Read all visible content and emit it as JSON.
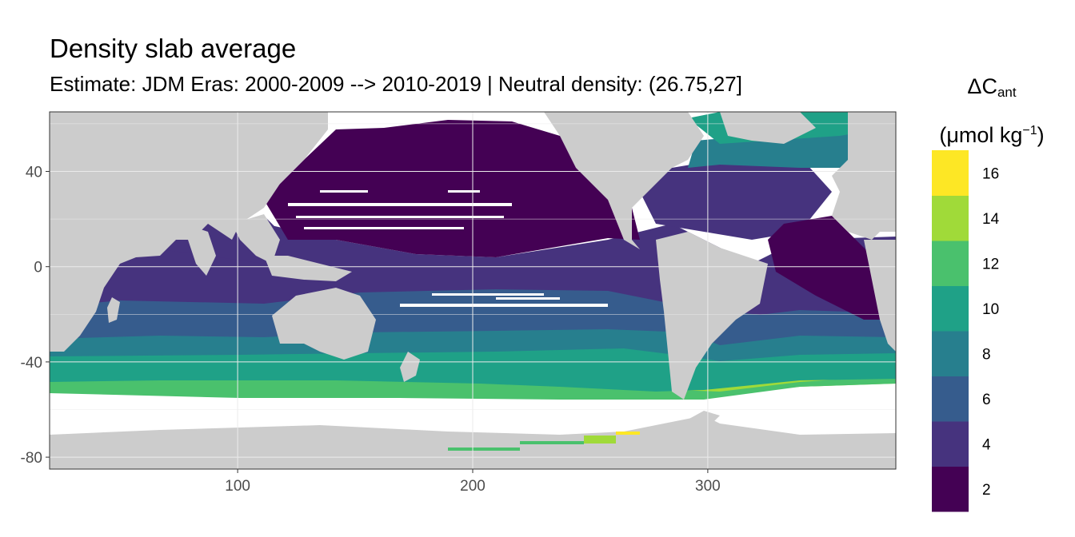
{
  "title": "Density slab average",
  "subtitle": "Estimate: JDM Eras: 2000-2009 --> 2010-2019 | Neutral density: (26.75,27]",
  "legend": {
    "title_prefix": "ΔC",
    "title_sub": "ant",
    "unit_prefix": "(μmol kg",
    "unit_sup": "−1",
    "unit_suffix": ")",
    "breaks": [
      "2",
      "4",
      "6",
      "8",
      "10",
      "12",
      "14",
      "16"
    ],
    "bins": [
      {
        "color": "#440154"
      },
      {
        "color": "#46337e"
      },
      {
        "color": "#365c8d"
      },
      {
        "color": "#277f8e"
      },
      {
        "color": "#1fa187"
      },
      {
        "color": "#4ac16d"
      },
      {
        "color": "#a0da39"
      },
      {
        "color": "#fde725"
      }
    ]
  },
  "chart_data": {
    "type": "heatmap",
    "x_ticks": [
      "100",
      "200",
      "300"
    ],
    "y_ticks": [
      "40",
      "0",
      "-40",
      "-80"
    ],
    "xlim": [
      20,
      380
    ],
    "ylim": [
      -85,
      65
    ],
    "grid": true,
    "legend_position": "right"
  },
  "colors": {
    "land": "#cccccc",
    "nodata": "#ffffff",
    "panel_border": "#333333",
    "grid": "#ebebeb"
  }
}
